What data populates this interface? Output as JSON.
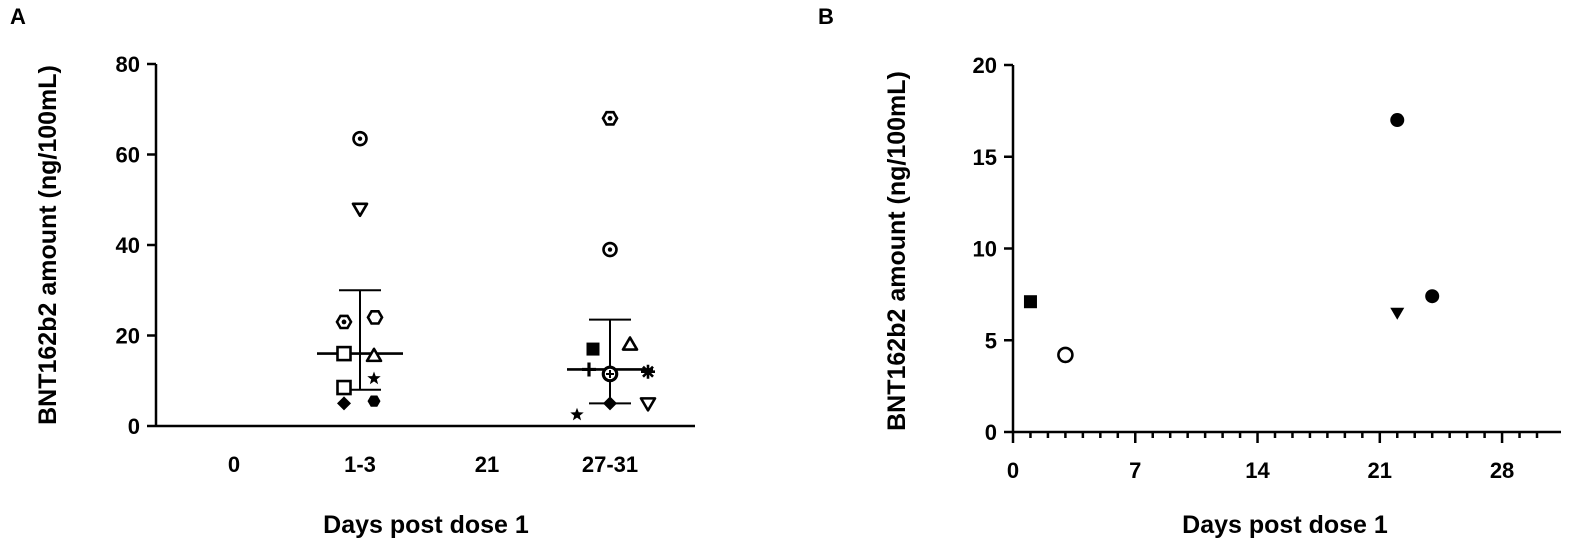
{
  "chart_data": [
    {
      "panel": "A",
      "type": "scatter",
      "ylabel": "BNT162b2 amount (ng/100mL)",
      "xlabel": "Days post dose 1",
      "categories": [
        "0",
        "1-3",
        "21",
        "27-31"
      ],
      "yticks": [
        0,
        20,
        40,
        60,
        80
      ],
      "ylim": [
        0,
        80
      ],
      "points": [
        {
          "category": "1-3",
          "y": 63.5,
          "marker": "circle-dot"
        },
        {
          "category": "1-3",
          "y": 48,
          "marker": "triangle-down-open"
        },
        {
          "category": "1-3",
          "y": 23,
          "marker": "hexagon-dot"
        },
        {
          "category": "1-3",
          "y": 24,
          "marker": "hexagon-open"
        },
        {
          "category": "1-3",
          "y": 16,
          "marker": "square-open"
        },
        {
          "category": "1-3",
          "y": 15.5,
          "marker": "triangle-up-open"
        },
        {
          "category": "1-3",
          "y": 10.5,
          "marker": "star"
        },
        {
          "category": "1-3",
          "y": 8.5,
          "marker": "square-open"
        },
        {
          "category": "1-3",
          "y": 5,
          "marker": "diamond-filled"
        },
        {
          "category": "1-3",
          "y": 5.5,
          "marker": "hexagon-filled"
        },
        {
          "category": "27-31",
          "y": 68,
          "marker": "hexagon-dot"
        },
        {
          "category": "27-31",
          "y": 39,
          "marker": "circle-dot"
        },
        {
          "category": "27-31",
          "y": 17,
          "marker": "square-filled"
        },
        {
          "category": "27-31",
          "y": 18,
          "marker": "triangle-up-open"
        },
        {
          "category": "27-31",
          "y": 12.5,
          "marker": "plus"
        },
        {
          "category": "27-31",
          "y": 11.5,
          "marker": "circle-open"
        },
        {
          "category": "27-31",
          "y": 11.5,
          "marker": "plus-in-circle"
        },
        {
          "category": "27-31",
          "y": 12,
          "marker": "asterisk"
        },
        {
          "category": "27-31",
          "y": 5,
          "marker": "diamond-filled"
        },
        {
          "category": "27-31",
          "y": 5,
          "marker": "triangle-down-open"
        },
        {
          "category": "27-31",
          "y": 2.5,
          "marker": "star"
        }
      ],
      "summary": [
        {
          "category": "1-3",
          "mean": 16,
          "upper": 30,
          "lower": 8
        },
        {
          "category": "27-31",
          "mean": 12.5,
          "upper": 23.5,
          "lower": 5
        }
      ]
    },
    {
      "panel": "B",
      "type": "scatter",
      "ylabel": "BNT162b2 amount (ng/100mL)",
      "xlabel": "Days post dose 1",
      "xticks": [
        0,
        7,
        14,
        21,
        28
      ],
      "xlim": [
        0,
        30
      ],
      "yticks": [
        0,
        5,
        10,
        15,
        20
      ],
      "ylim": [
        0,
        20
      ],
      "points": [
        {
          "x": 1,
          "y": 7.1,
          "marker": "square-filled"
        },
        {
          "x": 3,
          "y": 4.2,
          "marker": "circle-open"
        },
        {
          "x": 22,
          "y": 17,
          "marker": "circle-filled"
        },
        {
          "x": 22,
          "y": 6.5,
          "marker": "triangle-down-filled"
        },
        {
          "x": 24,
          "y": 7.4,
          "marker": "circle-filled"
        }
      ]
    }
  ]
}
